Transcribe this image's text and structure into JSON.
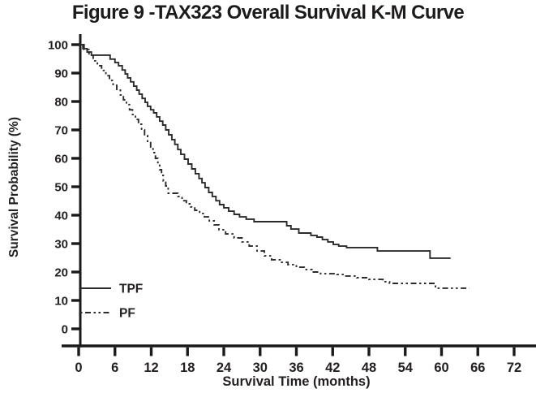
{
  "chart_data": {
    "type": "line",
    "subtype": "kaplan-meier-step",
    "title": "Figure 9 -TAX323 Overall Survival K-M Curve",
    "xlabel": "Survival Time (months)",
    "ylabel": "Survival Probability (%)",
    "xlim": [
      0,
      72
    ],
    "ylim": [
      0,
      100
    ],
    "xticks": [
      0,
      6,
      12,
      18,
      24,
      30,
      36,
      42,
      48,
      54,
      60,
      66,
      72
    ],
    "yticks": [
      0,
      10,
      20,
      30,
      40,
      50,
      60,
      70,
      80,
      90,
      100
    ],
    "grid": false,
    "line_color": "#2b2b2b",
    "axis_color": "#1a1a1a",
    "legend": {
      "position": "inside-bottom-left",
      "entries": [
        {
          "label": "TPF",
          "style": "solid"
        },
        {
          "label": "PF",
          "style": "dash-dot"
        }
      ]
    },
    "series": [
      {
        "name": "TPF",
        "line_style": "solid",
        "color": "#2b2b2b",
        "points": [
          [
            0,
            100
          ],
          [
            0.7,
            98.6
          ],
          [
            1.4,
            97.4
          ],
          [
            2.1,
            96.3
          ],
          [
            5.2,
            94.9
          ],
          [
            6.0,
            93.7
          ],
          [
            6.6,
            92.6
          ],
          [
            7.2,
            91.1
          ],
          [
            7.7,
            89.7
          ],
          [
            8.1,
            88.3
          ],
          [
            8.6,
            86.9
          ],
          [
            9.1,
            85.4
          ],
          [
            9.6,
            84.0
          ],
          [
            10.0,
            82.6
          ],
          [
            10.5,
            81.1
          ],
          [
            11.0,
            79.7
          ],
          [
            11.4,
            78.3
          ],
          [
            11.9,
            77.1
          ],
          [
            12.4,
            76.0
          ],
          [
            12.9,
            74.6
          ],
          [
            13.4,
            73.1
          ],
          [
            13.9,
            71.7
          ],
          [
            14.4,
            70.0
          ],
          [
            14.9,
            68.3
          ],
          [
            15.4,
            66.6
          ],
          [
            15.9,
            64.9
          ],
          [
            16.4,
            63.1
          ],
          [
            16.9,
            61.4
          ],
          [
            17.5,
            59.7
          ],
          [
            18.1,
            58.0
          ],
          [
            18.7,
            56.3
          ],
          [
            19.3,
            54.6
          ],
          [
            19.9,
            52.9
          ],
          [
            20.4,
            51.4
          ],
          [
            20.9,
            49.7
          ],
          [
            21.5,
            48.0
          ],
          [
            22.1,
            46.6
          ],
          [
            22.7,
            45.1
          ],
          [
            23.3,
            43.7
          ],
          [
            24.0,
            42.6
          ],
          [
            24.8,
            41.4
          ],
          [
            25.7,
            40.3
          ],
          [
            26.6,
            39.4
          ],
          [
            27.7,
            38.6
          ],
          [
            29.0,
            37.7
          ],
          [
            34.4,
            36.3
          ],
          [
            35.1,
            35.1
          ],
          [
            36.4,
            33.7
          ],
          [
            38.4,
            32.9
          ],
          [
            39.4,
            32.3
          ],
          [
            40.3,
            31.4
          ],
          [
            41.2,
            30.6
          ],
          [
            42.1,
            29.7
          ],
          [
            43.0,
            29.1
          ],
          [
            44.3,
            28.6
          ],
          [
            49.4,
            27.4
          ],
          [
            58.1,
            24.9
          ],
          [
            61.5,
            24.9
          ]
        ]
      },
      {
        "name": "PF",
        "line_style": "dash-dot",
        "color": "#2b2b2b",
        "points": [
          [
            0,
            100
          ],
          [
            0.9,
            98.3
          ],
          [
            1.7,
            96.3
          ],
          [
            2.4,
            94.3
          ],
          [
            3.1,
            92.6
          ],
          [
            3.8,
            90.9
          ],
          [
            4.5,
            89.1
          ],
          [
            5.1,
            87.4
          ],
          [
            5.7,
            85.7
          ],
          [
            6.3,
            84.0
          ],
          [
            6.9,
            82.3
          ],
          [
            7.4,
            80.6
          ],
          [
            7.9,
            78.9
          ],
          [
            8.4,
            77.1
          ],
          [
            8.9,
            75.4
          ],
          [
            9.4,
            73.7
          ],
          [
            9.9,
            72.0
          ],
          [
            10.4,
            70.0
          ],
          [
            10.9,
            68.0
          ],
          [
            11.4,
            66.0
          ],
          [
            11.9,
            64.0
          ],
          [
            12.3,
            62.0
          ],
          [
            12.7,
            60.0
          ],
          [
            13.1,
            58.0
          ],
          [
            13.4,
            56.0
          ],
          [
            13.7,
            54.0
          ],
          [
            14.0,
            52.0
          ],
          [
            14.4,
            50.3
          ],
          [
            14.8,
            47.7
          ],
          [
            16.4,
            46.6
          ],
          [
            17.1,
            45.1
          ],
          [
            17.8,
            44.0
          ],
          [
            18.5,
            42.9
          ],
          [
            19.2,
            41.7
          ],
          [
            20.0,
            40.6
          ],
          [
            20.8,
            39.4
          ],
          [
            21.6,
            38.0
          ],
          [
            22.4,
            36.6
          ],
          [
            23.2,
            34.9
          ],
          [
            24.3,
            33.4
          ],
          [
            25.7,
            32.0
          ],
          [
            27.0,
            30.6
          ],
          [
            28.2,
            29.1
          ],
          [
            29.5,
            27.4
          ],
          [
            30.7,
            25.7
          ],
          [
            31.9,
            24.3
          ],
          [
            33.3,
            23.4
          ],
          [
            34.6,
            22.6
          ],
          [
            36.0,
            21.7
          ],
          [
            37.3,
            20.9
          ],
          [
            38.6,
            20.0
          ],
          [
            40.0,
            19.4
          ],
          [
            42.7,
            19.1
          ],
          [
            44.0,
            18.6
          ],
          [
            46.0,
            18.0
          ],
          [
            48.0,
            17.4
          ],
          [
            50.3,
            16.6
          ],
          [
            51.4,
            16.0
          ],
          [
            59.0,
            14.3
          ],
          [
            64.6,
            14.3
          ]
        ]
      }
    ]
  }
}
